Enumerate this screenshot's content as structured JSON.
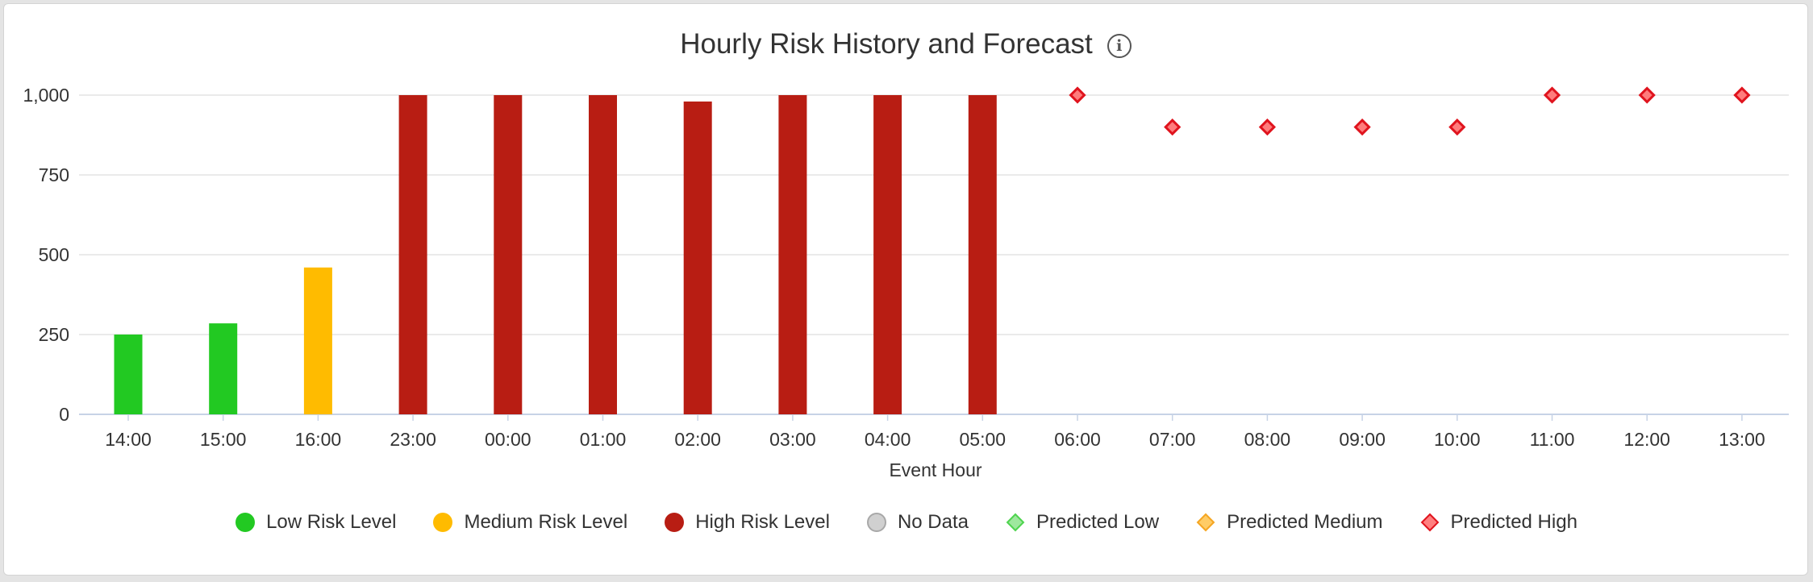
{
  "chart_data": {
    "type": "bar",
    "title": "Hourly Risk History and Forecast",
    "xlabel": "Event Hour",
    "ylabel": "",
    "ylim": [
      0,
      1000
    ],
    "yticks": [
      0,
      250,
      500,
      750,
      1000
    ],
    "ytick_labels": [
      "0",
      "250",
      "500",
      "750",
      "1,000"
    ],
    "categories": [
      "14:00",
      "15:00",
      "16:00",
      "23:00",
      "00:00",
      "01:00",
      "02:00",
      "03:00",
      "04:00",
      "05:00",
      "06:00",
      "07:00",
      "08:00",
      "09:00",
      "10:00",
      "11:00",
      "12:00",
      "13:00"
    ],
    "grid": true,
    "legend_position": "bottom",
    "series": [
      {
        "name": "Low Risk Level",
        "kind": "bar",
        "color": "#22c922",
        "values": [
          250,
          285,
          null,
          null,
          null,
          null,
          null,
          null,
          null,
          null,
          null,
          null,
          null,
          null,
          null,
          null,
          null,
          null
        ]
      },
      {
        "name": "Medium Risk Level",
        "kind": "bar",
        "color": "#ffbb00",
        "values": [
          null,
          null,
          460,
          null,
          null,
          null,
          null,
          null,
          null,
          null,
          null,
          null,
          null,
          null,
          null,
          null,
          null,
          null
        ]
      },
      {
        "name": "High Risk Level",
        "kind": "bar",
        "color": "#b81d13",
        "values": [
          null,
          null,
          null,
          1000,
          1000,
          1000,
          980,
          1000,
          1000,
          1000,
          null,
          null,
          null,
          null,
          null,
          null,
          null,
          null
        ]
      },
      {
        "name": "No Data",
        "kind": "bar",
        "color": "#c0c0c0",
        "values": [
          null,
          null,
          null,
          null,
          null,
          null,
          null,
          null,
          null,
          null,
          null,
          null,
          null,
          null,
          null,
          null,
          null,
          null
        ]
      },
      {
        "name": "Predicted Low",
        "kind": "marker",
        "color": "#4fd44f",
        "values": [
          null,
          null,
          null,
          null,
          null,
          null,
          null,
          null,
          null,
          null,
          null,
          null,
          null,
          null,
          null,
          null,
          null,
          null
        ]
      },
      {
        "name": "Predicted Medium",
        "kind": "marker",
        "color": "#f5a623",
        "values": [
          null,
          null,
          null,
          null,
          null,
          null,
          null,
          null,
          null,
          null,
          null,
          null,
          null,
          null,
          null,
          null,
          null,
          null
        ]
      },
      {
        "name": "Predicted High",
        "kind": "marker",
        "color": "#e0141e",
        "values": [
          null,
          null,
          null,
          null,
          null,
          null,
          null,
          null,
          null,
          null,
          1000,
          900,
          900,
          900,
          900,
          1000,
          1000,
          1000
        ]
      }
    ]
  },
  "info_icon": "info-icon"
}
